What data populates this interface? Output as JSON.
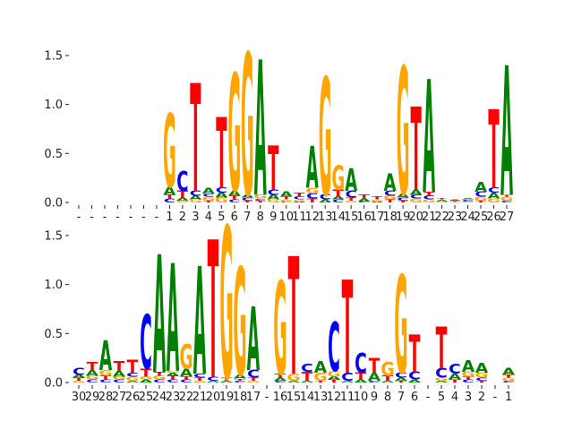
{
  "chart_data": [
    {
      "type": "sequence-logo",
      "title": "",
      "xlabel": "",
      "ylabel": "",
      "ylim": [
        0,
        1.6
      ],
      "yticks": [
        "0.0",
        "0.5",
        "1.0",
        "1.5"
      ],
      "ytick_values": [
        0,
        0.5,
        1.0,
        1.5
      ],
      "colors": {
        "A": "#008000",
        "C": "#0000ff",
        "G": "#ffa500",
        "T": "#ff0000"
      },
      "categories": [
        "-",
        "-",
        "-",
        "-",
        "-",
        "-",
        "-",
        "1",
        "2",
        "3",
        "4",
        "5",
        "6",
        "7",
        "8",
        "9",
        "10",
        "11",
        "12",
        "13",
        "14",
        "15",
        "16",
        "17",
        "18",
        "19",
        "20",
        "21",
        "22",
        "23",
        "24",
        "25",
        "26",
        "27"
      ],
      "stacks": [
        [],
        [],
        [],
        [],
        [],
        [],
        [],
        [
          [
            "C",
            0.04
          ],
          [
            "T",
            0.04
          ],
          [
            "A",
            0.08
          ],
          [
            "G",
            0.75
          ]
        ],
        [
          [
            "G",
            0.02
          ],
          [
            "A",
            0.03
          ],
          [
            "T",
            0.07
          ],
          [
            "C",
            0.2
          ]
        ],
        [
          [
            "G",
            0.03
          ],
          [
            "A",
            0.04
          ],
          [
            "C",
            0.05
          ],
          [
            "T",
            1.1
          ]
        ],
        [
          [
            "T",
            0.02
          ],
          [
            "G",
            0.04
          ],
          [
            "C",
            0.03
          ],
          [
            "A",
            0.06
          ]
        ],
        [
          [
            "G",
            0.05
          ],
          [
            "A",
            0.05
          ],
          [
            "C",
            0.05
          ],
          [
            "T",
            0.72
          ]
        ],
        [
          [
            "C",
            0.03
          ],
          [
            "T",
            0.04
          ],
          [
            "A",
            0.05
          ],
          [
            "G",
            1.2
          ]
        ],
        [
          [
            "T",
            0.02
          ],
          [
            "C",
            0.03
          ],
          [
            "A",
            0.03
          ],
          [
            "G",
            1.45
          ]
        ],
        [
          [
            "T",
            0.02
          ],
          [
            "C",
            0.02
          ],
          [
            "G",
            0.04
          ],
          [
            "A",
            1.38
          ]
        ],
        [
          [
            "G",
            0.03
          ],
          [
            "A",
            0.05
          ],
          [
            "C",
            0.05
          ],
          [
            "T",
            0.45
          ]
        ],
        [
          [
            "C",
            0.01
          ],
          [
            "G",
            0.02
          ],
          [
            "T",
            0.03
          ],
          [
            "A",
            0.05
          ]
        ],
        [
          [
            "A",
            0.01
          ],
          [
            "G",
            0.02
          ],
          [
            "C",
            0.03
          ],
          [
            "T",
            0.04
          ]
        ],
        [
          [
            "T",
            0.04
          ],
          [
            "C",
            0.05
          ],
          [
            "G",
            0.06
          ],
          [
            "A",
            0.43
          ]
        ],
        [
          [
            "A",
            0.03
          ],
          [
            "C",
            0.05
          ],
          [
            "G",
            1.2
          ]
        ],
        [
          [
            "C",
            0.03
          ],
          [
            "A",
            0.03
          ],
          [
            "T",
            0.07
          ],
          [
            "G",
            0.25
          ]
        ],
        [
          [
            "G",
            0.02
          ],
          [
            "T",
            0.03
          ],
          [
            "C",
            0.07
          ],
          [
            "A",
            0.23
          ]
        ],
        [
          [
            "C",
            0.01
          ],
          [
            "A",
            0.03
          ],
          [
            "T",
            0.04
          ]
        ],
        [
          [
            "A",
            0.01
          ],
          [
            "G",
            0.02
          ],
          [
            "T",
            0.03
          ]
        ],
        [
          [
            "T",
            0.03
          ],
          [
            "G",
            0.04
          ],
          [
            "C",
            0.05
          ],
          [
            "A",
            0.18
          ]
        ],
        [
          [
            "T",
            0.02
          ],
          [
            "C",
            0.03
          ],
          [
            "A",
            0.04
          ],
          [
            "G",
            1.3
          ]
        ],
        [
          [
            "G",
            0.04
          ],
          [
            "C",
            0.04
          ],
          [
            "A",
            0.05
          ],
          [
            "T",
            0.85
          ]
        ],
        [
          [
            "G",
            0.03
          ],
          [
            "C",
            0.04
          ],
          [
            "T",
            0.04
          ],
          [
            "A",
            1.15
          ]
        ],
        [
          [
            "G",
            0.01
          ],
          [
            "A",
            0.02
          ],
          [
            "T",
            0.01
          ]
        ],
        [
          [
            "G",
            0.01
          ],
          [
            "T",
            0.01
          ],
          [
            "A",
            0.01
          ]
        ],
        [
          [
            "G",
            0.01
          ],
          [
            "C",
            0.02
          ],
          [
            "A",
            0.01
          ]
        ],
        [
          [
            "T",
            0.02
          ],
          [
            "G",
            0.04
          ],
          [
            "C",
            0.05
          ],
          [
            "A",
            0.1
          ]
        ],
        [
          [
            "G",
            0.04
          ],
          [
            "A",
            0.06
          ],
          [
            "C",
            0.05
          ],
          [
            "T",
            0.8
          ]
        ],
        [
          [
            "C",
            0.02
          ],
          [
            "G",
            0.04
          ],
          [
            "T",
            0.02
          ],
          [
            "A",
            1.32
          ]
        ]
      ]
    },
    {
      "type": "sequence-logo",
      "title": "",
      "xlabel": "",
      "ylabel": "",
      "ylim": [
        0,
        1.6
      ],
      "yticks": [
        "0.0",
        "0.5",
        "1.0",
        "1.5"
      ],
      "ytick_values": [
        0,
        0.5,
        1.0,
        1.5
      ],
      "colors": {
        "A": "#008000",
        "C": "#0000ff",
        "G": "#ffa500",
        "T": "#ff0000"
      },
      "categories": [
        "30",
        "29",
        "28",
        "27",
        "26",
        "25",
        "24",
        "23",
        "22",
        "21",
        "20",
        "19",
        "18",
        "17",
        "-",
        "16",
        "15",
        "14",
        "13",
        "12",
        "11",
        "10",
        "9",
        "8",
        "7",
        "6",
        "-",
        "5",
        "4",
        "3",
        "2",
        "-",
        "1"
      ],
      "stacks": [
        [
          [
            "G",
            0.02
          ],
          [
            "T",
            0.03
          ],
          [
            "A",
            0.03
          ],
          [
            "C",
            0.07
          ]
        ],
        [
          [
            "C",
            0.03
          ],
          [
            "G",
            0.04
          ],
          [
            "A",
            0.06
          ],
          [
            "T",
            0.08
          ]
        ],
        [
          [
            "C",
            0.03
          ],
          [
            "T",
            0.04
          ],
          [
            "G",
            0.06
          ],
          [
            "A",
            0.3
          ]
        ],
        [
          [
            "C",
            0.03
          ],
          [
            "G",
            0.03
          ],
          [
            "A",
            0.06
          ],
          [
            "T",
            0.1
          ]
        ],
        [
          [
            "A",
            0.02
          ],
          [
            "G",
            0.04
          ],
          [
            "C",
            0.04
          ],
          [
            "T",
            0.13
          ]
        ],
        [
          [
            "A",
            0.03
          ],
          [
            "G",
            0.03
          ],
          [
            "T",
            0.08
          ],
          [
            "C",
            0.55
          ]
        ],
        [
          [
            "C",
            0.03
          ],
          [
            "G",
            0.04
          ],
          [
            "T",
            0.04
          ],
          [
            "A",
            1.2
          ]
        ],
        [
          [
            "C",
            0.03
          ],
          [
            "T",
            0.04
          ],
          [
            "A",
            0.03
          ],
          [
            "G",
            0.02
          ],
          [
            "A",
            1.1
          ]
        ],
        [
          [
            "C",
            0.03
          ],
          [
            "T",
            0.03
          ],
          [
            "A",
            0.08
          ],
          [
            "G",
            0.25
          ]
        ],
        [
          [
            "G",
            0.02
          ],
          [
            "T",
            0.03
          ],
          [
            "C",
            0.04
          ],
          [
            "A",
            1.1
          ]
        ],
        [
          [
            "A",
            0.02
          ],
          [
            "C",
            0.04
          ],
          [
            "T",
            1.4
          ]
        ],
        [
          [
            "A",
            0.02
          ],
          [
            "T",
            0.03
          ],
          [
            "G",
            1.55
          ]
        ],
        [
          [
            "C",
            0.02
          ],
          [
            "T",
            0.02
          ],
          [
            "A",
            0.04
          ],
          [
            "G",
            1.1
          ]
        ],
        [
          [
            "G",
            0.02
          ],
          [
            "T",
            0.03
          ],
          [
            "C",
            0.08
          ],
          [
            "A",
            0.65
          ]
        ],
        [],
        [
          [
            "C",
            0.02
          ],
          [
            "A",
            0.03
          ],
          [
            "T",
            0.04
          ],
          [
            "G",
            0.95
          ]
        ],
        [
          [
            "A",
            0.02
          ],
          [
            "G",
            0.07
          ],
          [
            "T",
            1.2
          ]
        ],
        [
          [
            "A",
            0.02
          ],
          [
            "T",
            0.09
          ],
          [
            "C",
            0.08
          ]
        ],
        [
          [
            "T",
            0.02
          ],
          [
            "G",
            0.08
          ],
          [
            "A",
            0.12
          ]
        ],
        [
          [
            "T",
            0.03
          ],
          [
            "A",
            0.03
          ],
          [
            "G",
            0.06
          ],
          [
            "C",
            0.5
          ]
        ],
        [
          [
            "A",
            0.02
          ],
          [
            "C",
            0.08
          ],
          [
            "T",
            0.95
          ]
        ],
        [
          [
            "A",
            0.03
          ],
          [
            "T",
            0.07
          ],
          [
            "C",
            0.2
          ]
        ],
        [
          [
            "C",
            0.02
          ],
          [
            "A",
            0.08
          ],
          [
            "T",
            0.15
          ]
        ],
        [
          [
            "A",
            0.02
          ],
          [
            "T",
            0.05
          ],
          [
            "G",
            0.14
          ]
        ],
        [
          [
            "T",
            0.02
          ],
          [
            "A",
            0.03
          ],
          [
            "C",
            0.05
          ],
          [
            "G",
            1.0
          ]
        ],
        [
          [
            "A",
            0.03
          ],
          [
            "C",
            0.08
          ],
          [
            "T",
            0.38
          ]
        ],
        [],
        [
          [
            "A",
            0.02
          ],
          [
            "G",
            0.03
          ],
          [
            "C",
            0.1
          ],
          [
            "T",
            0.42
          ]
        ],
        [
          [
            "T",
            0.03
          ],
          [
            "A",
            0.06
          ],
          [
            "C",
            0.1
          ]
        ],
        [
          [
            "C",
            0.03
          ],
          [
            "T",
            0.03
          ],
          [
            "G",
            0.05
          ],
          [
            "A",
            0.12
          ]
        ],
        [
          [
            "T",
            0.02
          ],
          [
            "C",
            0.03
          ],
          [
            "G",
            0.05
          ],
          [
            "A",
            0.1
          ]
        ],
        [],
        [
          [
            "C",
            0.02
          ],
          [
            "G",
            0.03
          ],
          [
            "T",
            0.03
          ],
          [
            "A",
            0.07
          ]
        ]
      ]
    }
  ]
}
